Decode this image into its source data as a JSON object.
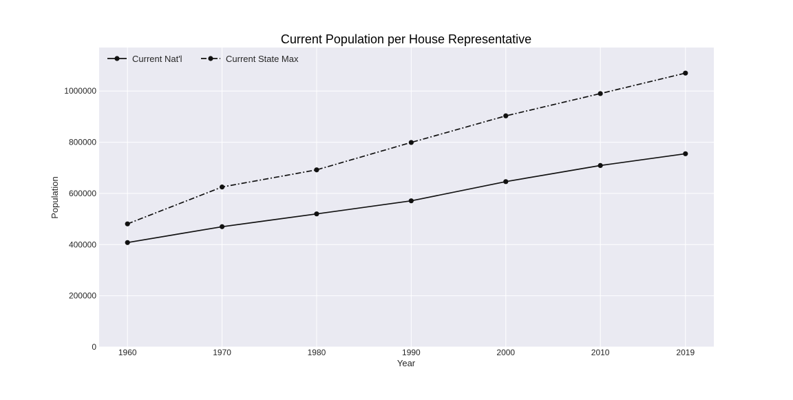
{
  "chart_data": {
    "type": "line",
    "title": "Current Population per House Representative",
    "xlabel": "Year",
    "ylabel": "Population",
    "x": [
      1960,
      1970,
      1980,
      1990,
      2000,
      2010,
      2019
    ],
    "xticks": [
      "1960",
      "1970",
      "1980",
      "1990",
      "2000",
      "2010",
      "2019"
    ],
    "ylim": [
      0,
      1170000
    ],
    "yticks": [
      0,
      200000,
      400000,
      600000,
      800000,
      1000000
    ],
    "ytick_labels": [
      "0",
      "200000",
      "400000",
      "600000",
      "800000",
      "1000000"
    ],
    "grid": true,
    "legend_position": "top-left",
    "series": [
      {
        "name": "Current Nat'l",
        "values": [
          408000,
          470000,
          520000,
          571000,
          646000,
          709000,
          755000
        ],
        "linestyle": "solid",
        "color": "#111111"
      },
      {
        "name": "Current State Max",
        "values": [
          481000,
          625000,
          692000,
          799000,
          903000,
          990000,
          1070000
        ],
        "linestyle": "dashdot",
        "color": "#111111"
      }
    ],
    "background": "#eaeaf2"
  }
}
